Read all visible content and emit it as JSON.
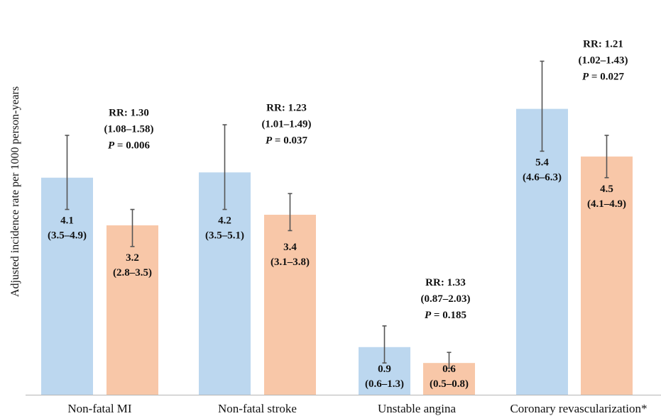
{
  "chart_data": {
    "type": "bar",
    "ylabel": "Adjusted incidence rate per 1000 person-years",
    "ylim": [
      0,
      7.5
    ],
    "grid": false,
    "colors": {
      "group1": "#bcd7ef",
      "group2": "#f8c7a8",
      "error": "#555555",
      "axis": "#b5b5b5"
    },
    "categories": [
      "Non-fatal MI",
      "Non-fatal stroke",
      "Unstable angina",
      "Coronary revascularization*"
    ],
    "series": [
      {
        "values": [
          4.1,
          4.2,
          0.9,
          5.4
        ],
        "ci_low": [
          3.5,
          3.5,
          0.6,
          4.6
        ],
        "ci_high": [
          4.9,
          5.1,
          1.3,
          6.3
        ],
        "value_labels": [
          "4.1",
          "4.2",
          "0.9",
          "5.4"
        ],
        "ci_labels": [
          "(3.5–4.9)",
          "(3.5–5.1)",
          "(0.6–1.3)",
          "(4.6–6.3)"
        ]
      },
      {
        "values": [
          3.2,
          3.4,
          0.6,
          4.5
        ],
        "ci_low": [
          2.8,
          3.1,
          0.5,
          4.1
        ],
        "ci_high": [
          3.5,
          3.8,
          0.8,
          4.9
        ],
        "value_labels": [
          "3.2",
          "3.4",
          "0.6",
          "4.5"
        ],
        "ci_labels": [
          "(2.8–3.5)",
          "(3.1–3.8)",
          "(0.5–0.8)",
          "(4.1–4.9)"
        ]
      }
    ],
    "annotations": [
      {
        "rr": "RR: 1.30",
        "ci": "(1.08–1.58)",
        "p": "0.006"
      },
      {
        "rr": "RR: 1.23",
        "ci": "(1.01–1.49)",
        "p": "0.037"
      },
      {
        "rr": "RR: 1.33",
        "ci": "(0.87–2.03)",
        "p": "0.185"
      },
      {
        "rr": "RR: 1.21",
        "ci": "(1.02–1.43)",
        "p": "0.027"
      }
    ],
    "p_prefix": "P",
    "p_eq": " = "
  }
}
